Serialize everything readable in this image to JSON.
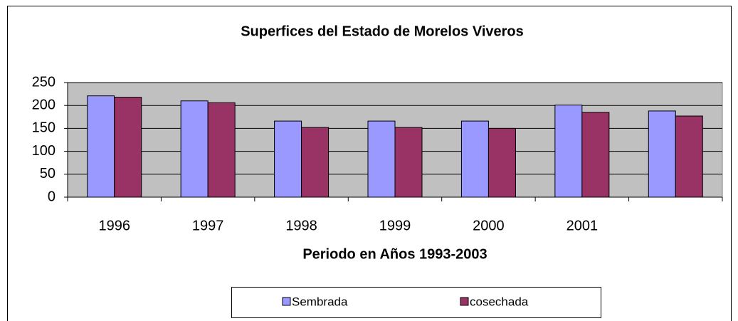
{
  "chart_data": {
    "type": "bar",
    "title": "Superfices del Estado de Morelos Viveros",
    "x_label": "Periodo en Años 1993-2003",
    "categories": [
      "1996",
      "1997",
      "1998",
      "1999",
      "2000",
      "2001",
      null
    ],
    "series": [
      {
        "name": "Sembrada",
        "color": "#9999ff",
        "values": [
          221,
          210,
          166,
          166,
          166,
          201,
          188
        ]
      },
      {
        "name": "cosechada",
        "color": "#993366",
        "values": [
          218,
          206,
          152,
          152,
          150,
          185,
          177
        ]
      }
    ],
    "ylim": [
      0,
      250
    ],
    "yticks": [
      0,
      50,
      100,
      150,
      200,
      250
    ],
    "grid": true,
    "plot_background": "#c0c0c0",
    "legend": "bottom"
  }
}
